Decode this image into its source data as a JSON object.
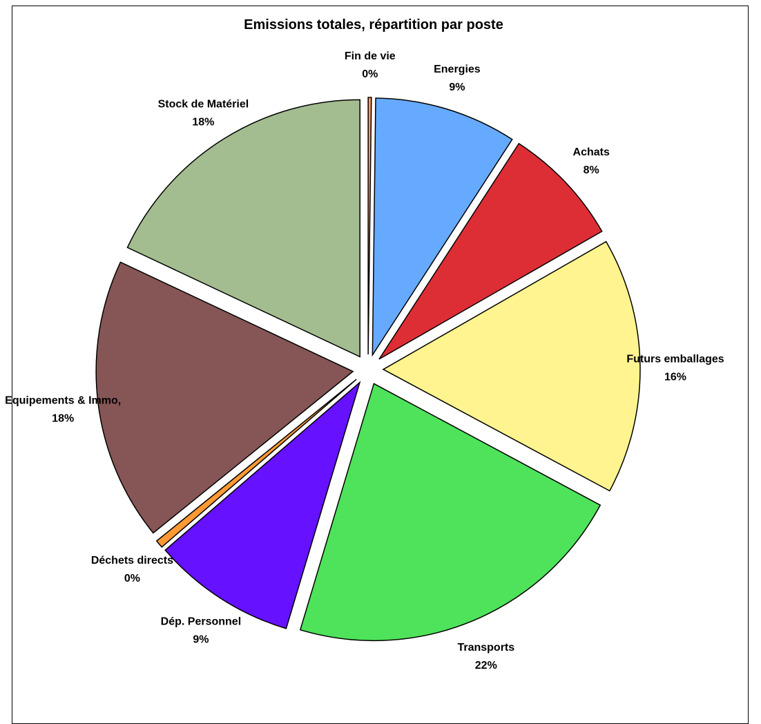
{
  "chart_data": {
    "type": "pie",
    "title": "Emissions totales, répartition par poste",
    "exploded": true,
    "start_angle_deg": 0,
    "direction": "clockwise",
    "slices": [
      {
        "name": "Fin de vie",
        "value": 0.2,
        "label": "0%",
        "color": "#ff9966"
      },
      {
        "name": "Energies",
        "value": 9,
        "label": "9%",
        "color": "#66aaff"
      },
      {
        "name": "Achats",
        "value": 7.6,
        "label": "8%",
        "color": "#dd2e36"
      },
      {
        "name": "Futurs emballages",
        "value": 16.2,
        "label": "16%",
        "color": "#fff48f"
      },
      {
        "name": "Transports",
        "value": 21.9,
        "label": "22%",
        "color": "#4ee35a"
      },
      {
        "name": "Dép. Personnel",
        "value": 9.1,
        "label": "9%",
        "color": "#6611ff"
      },
      {
        "name": "Déchets directs",
        "value": 0.5,
        "label": "0%",
        "color": "#ff9933"
      },
      {
        "name": "Equipements & Immo,",
        "value": 17.9,
        "label": "18%",
        "color": "#865555"
      },
      {
        "name": "Stock de Matériel",
        "value": 18.1,
        "label": "18%",
        "color": "#a3bd90"
      }
    ],
    "legend": "none"
  }
}
